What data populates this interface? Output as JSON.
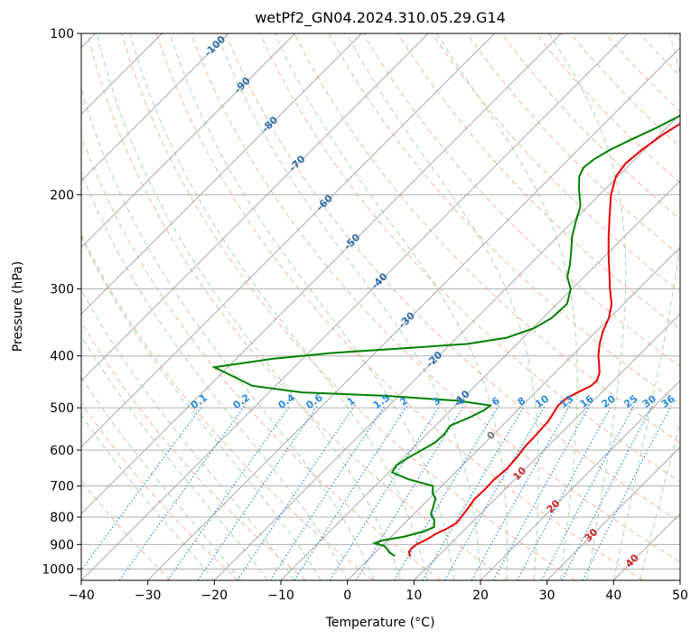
{
  "colors": {
    "temperature": "#e60000",
    "dewpoint": "#008000",
    "isotherm_cold_label": "#2d6ea8",
    "isotherm_warm_label": "#c62828",
    "mixing_ratio": "#2b8bdc",
    "dry_adiabat": "#f4a98c",
    "moist_adiabat": "#9fcf9f"
  },
  "chart_data": {
    "type": "line",
    "title": "wetPf2_GN04.2024.310.05.29.G14",
    "xlabel": "Temperature (°C)",
    "ylabel": "Pressure (hPa)",
    "xlim": [
      -40,
      50
    ],
    "ylim": [
      1050,
      100
    ],
    "yscale": "log",
    "skew": "skew-T",
    "grid": true,
    "xticks": [
      "−40",
      "−30",
      "−20",
      "−10",
      "0",
      "10",
      "20",
      "30",
      "40",
      "50"
    ],
    "xtick_values": [
      -40,
      -30,
      -20,
      -10,
      0,
      10,
      20,
      30,
      40,
      50
    ],
    "yticks": [
      "100",
      "200",
      "300",
      "400",
      "500",
      "600",
      "700",
      "800",
      "900",
      "1000"
    ],
    "ytick_values": [
      100,
      200,
      300,
      400,
      500,
      600,
      700,
      800,
      900,
      1000
    ],
    "isotherm_labels": [
      {
        "t": -100,
        "text": "-100"
      },
      {
        "t": -90,
        "text": "-90"
      },
      {
        "t": -80,
        "text": "-80"
      },
      {
        "t": -70,
        "text": "-70"
      },
      {
        "t": -60,
        "text": "-60"
      },
      {
        "t": -50,
        "text": "-50"
      },
      {
        "t": -40,
        "text": "-40"
      },
      {
        "t": -30,
        "text": "-30"
      },
      {
        "t": -20,
        "text": "-20"
      },
      {
        "t": -10,
        "text": "-10"
      },
      {
        "t": 0,
        "text": "0"
      },
      {
        "t": 10,
        "text": "10"
      },
      {
        "t": 20,
        "text": "20"
      },
      {
        "t": 30,
        "text": "30"
      },
      {
        "t": 40,
        "text": "40"
      }
    ],
    "mixing_ratio_labels": [
      "0.1",
      "0.2",
      "0.4",
      "0.6",
      "1",
      "1.5",
      "2",
      "3",
      "4",
      "6",
      "8",
      "10",
      "13",
      "16",
      "20",
      "25",
      "30",
      "36"
    ],
    "mixing_ratio_values": [
      0.1,
      0.2,
      0.4,
      0.6,
      1,
      1.5,
      2,
      3,
      4,
      6,
      8,
      10,
      13,
      16,
      20,
      25,
      30,
      36
    ],
    "series": [
      {
        "name": "temperature",
        "points": [
          [
            946,
            5.8
          ],
          [
            930,
            5.0
          ],
          [
            915,
            4.8
          ],
          [
            900,
            5.0
          ],
          [
            880,
            5.8
          ],
          [
            860,
            6.3
          ],
          [
            840,
            7.2
          ],
          [
            820,
            7.8
          ],
          [
            800,
            7.6
          ],
          [
            770,
            7.3
          ],
          [
            740,
            6.9
          ],
          [
            710,
            7.0
          ],
          [
            680,
            6.9
          ],
          [
            650,
            7.2
          ],
          [
            620,
            7.0
          ],
          [
            590,
            6.6
          ],
          [
            560,
            6.5
          ],
          [
            530,
            6.3
          ],
          [
            510,
            5.8
          ],
          [
            495,
            5.4
          ],
          [
            480,
            5.6
          ],
          [
            465,
            6.6
          ],
          [
            455,
            7.4
          ],
          [
            445,
            7.5
          ],
          [
            430,
            6.7
          ],
          [
            415,
            5.4
          ],
          [
            400,
            4.0
          ],
          [
            380,
            2.4
          ],
          [
            360,
            1.0
          ],
          [
            340,
            -0.1
          ],
          [
            320,
            -1.8
          ],
          [
            300,
            -4.3
          ],
          [
            280,
            -6.8
          ],
          [
            260,
            -9.5
          ],
          [
            240,
            -12.3
          ],
          [
            220,
            -15.2
          ],
          [
            200,
            -18.3
          ],
          [
            185,
            -20.3
          ],
          [
            175,
            -20.8
          ],
          [
            165,
            -20.4
          ],
          [
            155,
            -19.6
          ],
          [
            145,
            -18.2
          ],
          [
            135,
            -16.8
          ],
          [
            125,
            -14.9
          ],
          [
            118,
            -14.2
          ],
          [
            110,
            -13.8
          ],
          [
            104,
            -12.9
          ],
          [
            100,
            -12.1
          ]
        ]
      },
      {
        "name": "dewpoint",
        "points": [
          [
            946,
            3.5
          ],
          [
            930,
            2.0
          ],
          [
            915,
            1.1
          ],
          [
            905,
            0.3
          ],
          [
            895,
            -1.5
          ],
          [
            885,
            -0.8
          ],
          [
            870,
            2.0
          ],
          [
            850,
            4.2
          ],
          [
            835,
            5.0
          ],
          [
            810,
            4.0
          ],
          [
            790,
            2.6
          ],
          [
            770,
            2.0
          ],
          [
            740,
            1.0
          ],
          [
            720,
            -0.4
          ],
          [
            700,
            -1.3
          ],
          [
            680,
            -6.0
          ],
          [
            660,
            -9.5
          ],
          [
            640,
            -9.9
          ],
          [
            620,
            -9.3
          ],
          [
            600,
            -8.4
          ],
          [
            580,
            -7.5
          ],
          [
            560,
            -7.4
          ],
          [
            540,
            -7.8
          ],
          [
            520,
            -6.0
          ],
          [
            505,
            -5.0
          ],
          [
            495,
            -4.8
          ],
          [
            485,
            -10.5
          ],
          [
            475,
            -22.0
          ],
          [
            468,
            -35.0
          ],
          [
            455,
            -43.5
          ],
          [
            420,
            -52.0
          ],
          [
            405,
            -44.5
          ],
          [
            395,
            -36.5
          ],
          [
            388,
            -27.5
          ],
          [
            380,
            -17.5
          ],
          [
            370,
            -12.5
          ],
          [
            355,
            -9.8
          ],
          [
            340,
            -8.7
          ],
          [
            320,
            -8.5
          ],
          [
            300,
            -10.2
          ],
          [
            285,
            -12.5
          ],
          [
            270,
            -14.0
          ],
          [
            255,
            -15.8
          ],
          [
            240,
            -17.8
          ],
          [
            225,
            -19.5
          ],
          [
            210,
            -21.2
          ],
          [
            195,
            -24.0
          ],
          [
            185,
            -25.8
          ],
          [
            178,
            -26.5
          ],
          [
            172,
            -26.2
          ],
          [
            165,
            -25.2
          ],
          [
            158,
            -23.6
          ],
          [
            150,
            -21.5
          ],
          [
            140,
            -19.2
          ],
          [
            130,
            -17.0
          ],
          [
            122,
            -17.0
          ],
          [
            116,
            -17.2
          ],
          [
            110,
            -17.0
          ],
          [
            104,
            -16.4
          ],
          [
            100,
            -15.9
          ]
        ]
      }
    ]
  }
}
